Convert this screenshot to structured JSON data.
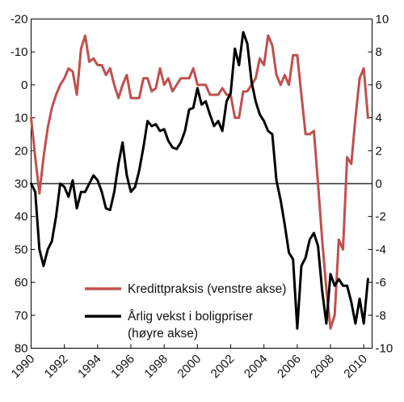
{
  "chart_data": {
    "type": "line",
    "x_ticks": [
      "1990",
      "1992",
      "1994",
      "1996",
      "1998",
      "2000",
      "2002",
      "2004",
      "2006",
      "2008",
      "2010"
    ],
    "left_axis": {
      "ticks": [
        "-20",
        "-10",
        "0",
        "10",
        "20",
        "30",
        "40",
        "50",
        "60",
        "70",
        "80"
      ],
      "ylim": [
        -20,
        80
      ],
      "inverted": true
    },
    "right_axis": {
      "ticks": [
        "10",
        "8",
        "6",
        "4",
        "2",
        "0",
        "-2",
        "-4",
        "-6",
        "-8",
        "-10"
      ],
      "ylim": [
        -10,
        10
      ]
    },
    "zero_line": true,
    "legend_position": "lower-center",
    "series": [
      {
        "name": "Kredittpraksis (venstre akse)",
        "axis": "left",
        "color": "#c0504d",
        "points": [
          [
            1990.0,
            10
          ],
          [
            1990.25,
            22
          ],
          [
            1990.5,
            33
          ],
          [
            1990.75,
            22
          ],
          [
            1991.0,
            13
          ],
          [
            1991.25,
            7
          ],
          [
            1991.5,
            3
          ],
          [
            1991.75,
            0
          ],
          [
            1992.0,
            -2
          ],
          [
            1992.25,
            -5
          ],
          [
            1992.5,
            -4
          ],
          [
            1992.75,
            3
          ],
          [
            1993.0,
            -11
          ],
          [
            1993.25,
            -15
          ],
          [
            1993.5,
            -7
          ],
          [
            1993.75,
            -8
          ],
          [
            1994.0,
            -6
          ],
          [
            1994.25,
            -6
          ],
          [
            1994.5,
            -3
          ],
          [
            1994.75,
            -5
          ],
          [
            1995.0,
            0
          ],
          [
            1995.25,
            4
          ],
          [
            1995.5,
            0
          ],
          [
            1995.75,
            -3
          ],
          [
            1996.0,
            4
          ],
          [
            1996.25,
            4
          ],
          [
            1996.5,
            4
          ],
          [
            1996.75,
            -2
          ],
          [
            1997.0,
            -2
          ],
          [
            1997.25,
            2
          ],
          [
            1997.5,
            1
          ],
          [
            1997.75,
            -5
          ],
          [
            1998.0,
            0
          ],
          [
            1998.25,
            -2
          ],
          [
            1998.5,
            2
          ],
          [
            1998.75,
            0
          ],
          [
            1999.0,
            -2
          ],
          [
            1999.25,
            -2
          ],
          [
            1999.5,
            -2
          ],
          [
            1999.75,
            -5
          ],
          [
            2000.0,
            0
          ],
          [
            2000.25,
            0
          ],
          [
            2000.5,
            0
          ],
          [
            2000.75,
            3
          ],
          [
            2001.0,
            3
          ],
          [
            2001.25,
            3
          ],
          [
            2001.5,
            1
          ],
          [
            2001.75,
            3
          ],
          [
            2002.0,
            3
          ],
          [
            2002.25,
            10
          ],
          [
            2002.5,
            10
          ],
          [
            2002.75,
            2
          ],
          [
            2003.0,
            2
          ],
          [
            2003.25,
            0
          ],
          [
            2003.5,
            -2
          ],
          [
            2003.75,
            -8
          ],
          [
            2004.0,
            -6
          ],
          [
            2004.25,
            -15
          ],
          [
            2004.5,
            -12
          ],
          [
            2004.75,
            -3
          ],
          [
            2005.0,
            0
          ],
          [
            2005.25,
            -3
          ],
          [
            2005.5,
            0
          ],
          [
            2005.75,
            -9
          ],
          [
            2006.0,
            -9
          ],
          [
            2006.25,
            3
          ],
          [
            2006.5,
            15
          ],
          [
            2006.75,
            15
          ],
          [
            2007.0,
            14
          ],
          [
            2007.25,
            30
          ],
          [
            2007.5,
            47
          ],
          [
            2007.75,
            62
          ],
          [
            2008.0,
            74
          ],
          [
            2008.25,
            70
          ],
          [
            2008.5,
            47
          ],
          [
            2008.75,
            50
          ],
          [
            2009.0,
            22
          ],
          [
            2009.25,
            24
          ],
          [
            2009.5,
            10
          ],
          [
            2009.75,
            -2
          ],
          [
            2010.0,
            -5
          ],
          [
            2010.25,
            10
          ]
        ]
      },
      {
        "name": "Årlig vekst i boligpriser (høyre akse)",
        "axis": "right",
        "color": "#000000",
        "points": [
          [
            1990.0,
            0
          ],
          [
            1990.25,
            -0.5
          ],
          [
            1990.5,
            -4
          ],
          [
            1990.75,
            -5
          ],
          [
            1991.0,
            -4
          ],
          [
            1991.25,
            -3.5
          ],
          [
            1991.5,
            -2
          ],
          [
            1991.75,
            0
          ],
          [
            1992.0,
            -0.2
          ],
          [
            1992.25,
            -0.8
          ],
          [
            1992.5,
            0.2
          ],
          [
            1992.75,
            -1.5
          ],
          [
            1993.0,
            -0.5
          ],
          [
            1993.25,
            -0.5
          ],
          [
            1993.5,
            0
          ],
          [
            1993.75,
            0.5
          ],
          [
            1994.0,
            0.2
          ],
          [
            1994.25,
            -0.5
          ],
          [
            1994.5,
            -1.5
          ],
          [
            1994.75,
            -1.6
          ],
          [
            1995.0,
            -0.5
          ],
          [
            1995.25,
            1.2
          ],
          [
            1995.5,
            2.5
          ],
          [
            1995.75,
            0.5
          ],
          [
            1996.0,
            -0.5
          ],
          [
            1996.25,
            -0.2
          ],
          [
            1996.5,
            0.8
          ],
          [
            1996.75,
            2.2
          ],
          [
            1997.0,
            3.8
          ],
          [
            1997.25,
            3.5
          ],
          [
            1997.5,
            3.6
          ],
          [
            1997.75,
            3.2
          ],
          [
            1998.0,
            3.3
          ],
          [
            1998.25,
            2.6
          ],
          [
            1998.5,
            2.2
          ],
          [
            1998.75,
            2.1
          ],
          [
            1999.0,
            2.5
          ],
          [
            1999.25,
            3.2
          ],
          [
            1999.5,
            4.5
          ],
          [
            1999.75,
            4.6
          ],
          [
            2000.0,
            5.8
          ],
          [
            2000.25,
            4.8
          ],
          [
            2000.5,
            5
          ],
          [
            2000.75,
            4.2
          ],
          [
            2001.0,
            3.5
          ],
          [
            2001.25,
            3.8
          ],
          [
            2001.5,
            3.2
          ],
          [
            2001.75,
            5
          ],
          [
            2002.0,
            5.5
          ],
          [
            2002.25,
            8.2
          ],
          [
            2002.5,
            7.2
          ],
          [
            2002.75,
            9.2
          ],
          [
            2003.0,
            8.5
          ],
          [
            2003.25,
            6.2
          ],
          [
            2003.5,
            5
          ],
          [
            2003.75,
            4.2
          ],
          [
            2004.0,
            3.8
          ],
          [
            2004.25,
            3.2
          ],
          [
            2004.5,
            3
          ],
          [
            2004.75,
            0.2
          ],
          [
            2005.0,
            -1
          ],
          [
            2005.25,
            -2.5
          ],
          [
            2005.5,
            -4.2
          ],
          [
            2005.75,
            -4.6
          ],
          [
            2006.0,
            -8.8
          ],
          [
            2006.25,
            -5
          ],
          [
            2006.5,
            -4.5
          ],
          [
            2006.75,
            -3.4
          ],
          [
            2007.0,
            -3
          ],
          [
            2007.25,
            -3.8
          ],
          [
            2007.5,
            -6.5
          ],
          [
            2007.75,
            -8.5
          ],
          [
            2008.0,
            -5.5
          ],
          [
            2008.25,
            -6.2
          ],
          [
            2008.5,
            -5.8
          ],
          [
            2008.75,
            -6.2
          ],
          [
            2009.0,
            -6.2
          ],
          [
            2009.25,
            -7.2
          ],
          [
            2009.5,
            -8.5
          ],
          [
            2009.75,
            -7
          ],
          [
            2010.0,
            -8.5
          ],
          [
            2010.25,
            -5.8
          ]
        ]
      }
    ]
  }
}
